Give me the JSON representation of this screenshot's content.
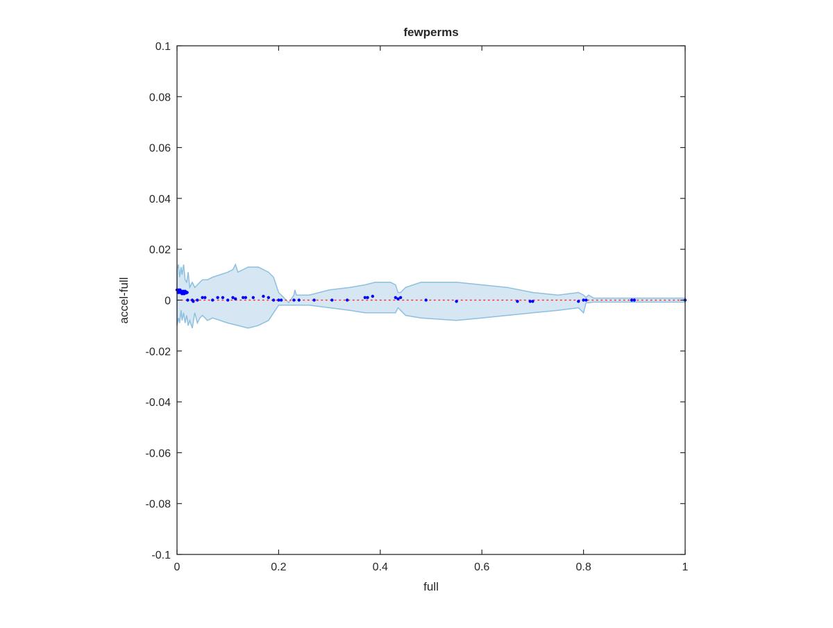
{
  "chart_data": {
    "type": "scatter",
    "title": "fewperms",
    "xlabel": "full",
    "ylabel": "accel-full",
    "xlim": [
      0,
      1
    ],
    "ylim": [
      -0.1,
      0.1
    ],
    "x_ticks": [
      "0",
      "0.2",
      "0.4",
      "0.6",
      "0.8",
      "1"
    ],
    "y_ticks": [
      "0.1",
      "0.08",
      "0.06",
      "0.04",
      "0.02",
      "0",
      "-0.02",
      "-0.04",
      "-0.06",
      "-0.08",
      "-0.1"
    ],
    "grid": false,
    "colors": {
      "band_fill": "#d6e6f3",
      "band_edge": "#8cc0de",
      "points": "#0000ff",
      "reference_line": "#ff2a2a",
      "axes": "#262626"
    },
    "confidence_band": {
      "upper": [
        [
          0.0,
          0.012
        ],
        [
          0.003,
          0.014
        ],
        [
          0.005,
          0.009
        ],
        [
          0.008,
          0.013
        ],
        [
          0.01,
          0.01
        ],
        [
          0.013,
          0.014
        ],
        [
          0.016,
          0.008
        ],
        [
          0.019,
          0.007
        ],
        [
          0.022,
          0.011
        ],
        [
          0.025,
          0.005
        ],
        [
          0.03,
          0.007
        ],
        [
          0.035,
          0.005
        ],
        [
          0.04,
          0.006
        ],
        [
          0.045,
          0.007
        ],
        [
          0.05,
          0.008
        ],
        [
          0.06,
          0.008
        ],
        [
          0.07,
          0.009
        ],
        [
          0.085,
          0.01
        ],
        [
          0.1,
          0.011
        ],
        [
          0.11,
          0.012
        ],
        [
          0.115,
          0.014
        ],
        [
          0.12,
          0.011
        ],
        [
          0.13,
          0.012
        ],
        [
          0.14,
          0.013
        ],
        [
          0.16,
          0.013
        ],
        [
          0.18,
          0.011
        ],
        [
          0.19,
          0.009
        ],
        [
          0.2,
          0.003
        ],
        [
          0.21,
          0.001
        ],
        [
          0.22,
          -0.001
        ],
        [
          0.23,
          0.002
        ],
        [
          0.232,
          0.004
        ],
        [
          0.235,
          0.002
        ],
        [
          0.26,
          0.002
        ],
        [
          0.3,
          0.004
        ],
        [
          0.34,
          0.005
        ],
        [
          0.37,
          0.006
        ],
        [
          0.39,
          0.007
        ],
        [
          0.42,
          0.007
        ],
        [
          0.43,
          0.006
        ],
        [
          0.435,
          0.003
        ],
        [
          0.44,
          0.003
        ],
        [
          0.45,
          0.005
        ],
        [
          0.48,
          0.007
        ],
        [
          0.55,
          0.007
        ],
        [
          0.6,
          0.006
        ],
        [
          0.65,
          0.005
        ],
        [
          0.7,
          0.003
        ],
        [
          0.75,
          0.002
        ],
        [
          0.79,
          0.003
        ],
        [
          0.8,
          0.002
        ],
        [
          0.805,
          0.001
        ],
        [
          0.81,
          0.002
        ],
        [
          0.82,
          0.0008
        ],
        [
          0.85,
          0.0008
        ],
        [
          0.9,
          0.0008
        ],
        [
          0.95,
          0.0008
        ],
        [
          1.0,
          0.0008
        ]
      ],
      "lower": [
        [
          0.0,
          -0.01
        ],
        [
          0.003,
          -0.007
        ],
        [
          0.005,
          -0.009
        ],
        [
          0.008,
          -0.004
        ],
        [
          0.01,
          -0.008
        ],
        [
          0.013,
          -0.005
        ],
        [
          0.016,
          -0.009
        ],
        [
          0.019,
          -0.006
        ],
        [
          0.022,
          -0.01
        ],
        [
          0.025,
          -0.008
        ],
        [
          0.03,
          -0.011
        ],
        [
          0.035,
          -0.005
        ],
        [
          0.04,
          -0.009
        ],
        [
          0.045,
          -0.007
        ],
        [
          0.05,
          -0.006
        ],
        [
          0.06,
          -0.008
        ],
        [
          0.07,
          -0.007
        ],
        [
          0.085,
          -0.008
        ],
        [
          0.1,
          -0.009
        ],
        [
          0.12,
          -0.01
        ],
        [
          0.14,
          -0.011
        ],
        [
          0.16,
          -0.01
        ],
        [
          0.18,
          -0.008
        ],
        [
          0.19,
          -0.005
        ],
        [
          0.2,
          -0.002
        ],
        [
          0.21,
          -0.002
        ],
        [
          0.22,
          -0.002
        ],
        [
          0.232,
          -0.002
        ],
        [
          0.26,
          -0.002
        ],
        [
          0.3,
          -0.003
        ],
        [
          0.34,
          -0.004
        ],
        [
          0.37,
          -0.005
        ],
        [
          0.4,
          -0.005
        ],
        [
          0.43,
          -0.005
        ],
        [
          0.435,
          -0.003
        ],
        [
          0.44,
          -0.004
        ],
        [
          0.45,
          -0.006
        ],
        [
          0.48,
          -0.007
        ],
        [
          0.55,
          -0.008
        ],
        [
          0.6,
          -0.007
        ],
        [
          0.65,
          -0.006
        ],
        [
          0.7,
          -0.005
        ],
        [
          0.75,
          -0.004
        ],
        [
          0.79,
          -0.003
        ],
        [
          0.8,
          -0.005
        ],
        [
          0.805,
          -0.001
        ],
        [
          0.81,
          -0.001
        ],
        [
          0.82,
          -0.0008
        ],
        [
          0.85,
          -0.0008
        ],
        [
          0.9,
          -0.0008
        ],
        [
          0.95,
          -0.0008
        ],
        [
          1.0,
          -0.0008
        ]
      ]
    },
    "points": [
      [
        0.0,
        0.004
      ],
      [
        0.002,
        0.003
      ],
      [
        0.003,
        0.004
      ],
      [
        0.004,
        0.003
      ],
      [
        0.005,
        0.0035
      ],
      [
        0.006,
        0.004
      ],
      [
        0.007,
        0.003
      ],
      [
        0.008,
        0.0035
      ],
      [
        0.009,
        0.003
      ],
      [
        0.01,
        0.0025
      ],
      [
        0.011,
        0.003
      ],
      [
        0.012,
        0.0035
      ],
      [
        0.013,
        0.003
      ],
      [
        0.014,
        0.0025
      ],
      [
        0.015,
        0.003
      ],
      [
        0.016,
        0.0035
      ],
      [
        0.017,
        0.0032
      ],
      [
        0.018,
        0.0028
      ],
      [
        0.019,
        0.003
      ],
      [
        0.02,
        0.003
      ],
      [
        0.021,
        0.0
      ],
      [
        0.03,
        0.0
      ],
      [
        0.032,
        -0.0005
      ],
      [
        0.04,
        0.0
      ],
      [
        0.05,
        0.001
      ],
      [
        0.055,
        0.001
      ],
      [
        0.07,
        0.0
      ],
      [
        0.08,
        0.001
      ],
      [
        0.09,
        0.001
      ],
      [
        0.1,
        0.0
      ],
      [
        0.11,
        0.001
      ],
      [
        0.115,
        0.0005
      ],
      [
        0.13,
        0.001
      ],
      [
        0.135,
        0.001
      ],
      [
        0.15,
        0.001
      ],
      [
        0.17,
        0.0015
      ],
      [
        0.18,
        0.001
      ],
      [
        0.19,
        0.0
      ],
      [
        0.2,
        0.0
      ],
      [
        0.205,
        0.0
      ],
      [
        0.23,
        0.0
      ],
      [
        0.24,
        0.0
      ],
      [
        0.27,
        0.0
      ],
      [
        0.305,
        0.0
      ],
      [
        0.335,
        0.0
      ],
      [
        0.37,
        0.001
      ],
      [
        0.375,
        0.001
      ],
      [
        0.385,
        0.0015
      ],
      [
        0.43,
        0.001
      ],
      [
        0.435,
        0.0005
      ],
      [
        0.44,
        0.001
      ],
      [
        0.49,
        0.0
      ],
      [
        0.55,
        -0.0005
      ],
      [
        0.67,
        -0.0005
      ],
      [
        0.695,
        -0.0005
      ],
      [
        0.7,
        -0.0005
      ],
      [
        0.79,
        -0.0005
      ],
      [
        0.8,
        0.0
      ],
      [
        0.805,
        0.0
      ],
      [
        0.895,
        0.0
      ],
      [
        0.9,
        0.0
      ],
      [
        1.0,
        0.0
      ]
    ],
    "reference_line": {
      "y": 0,
      "style": "dotted"
    }
  }
}
